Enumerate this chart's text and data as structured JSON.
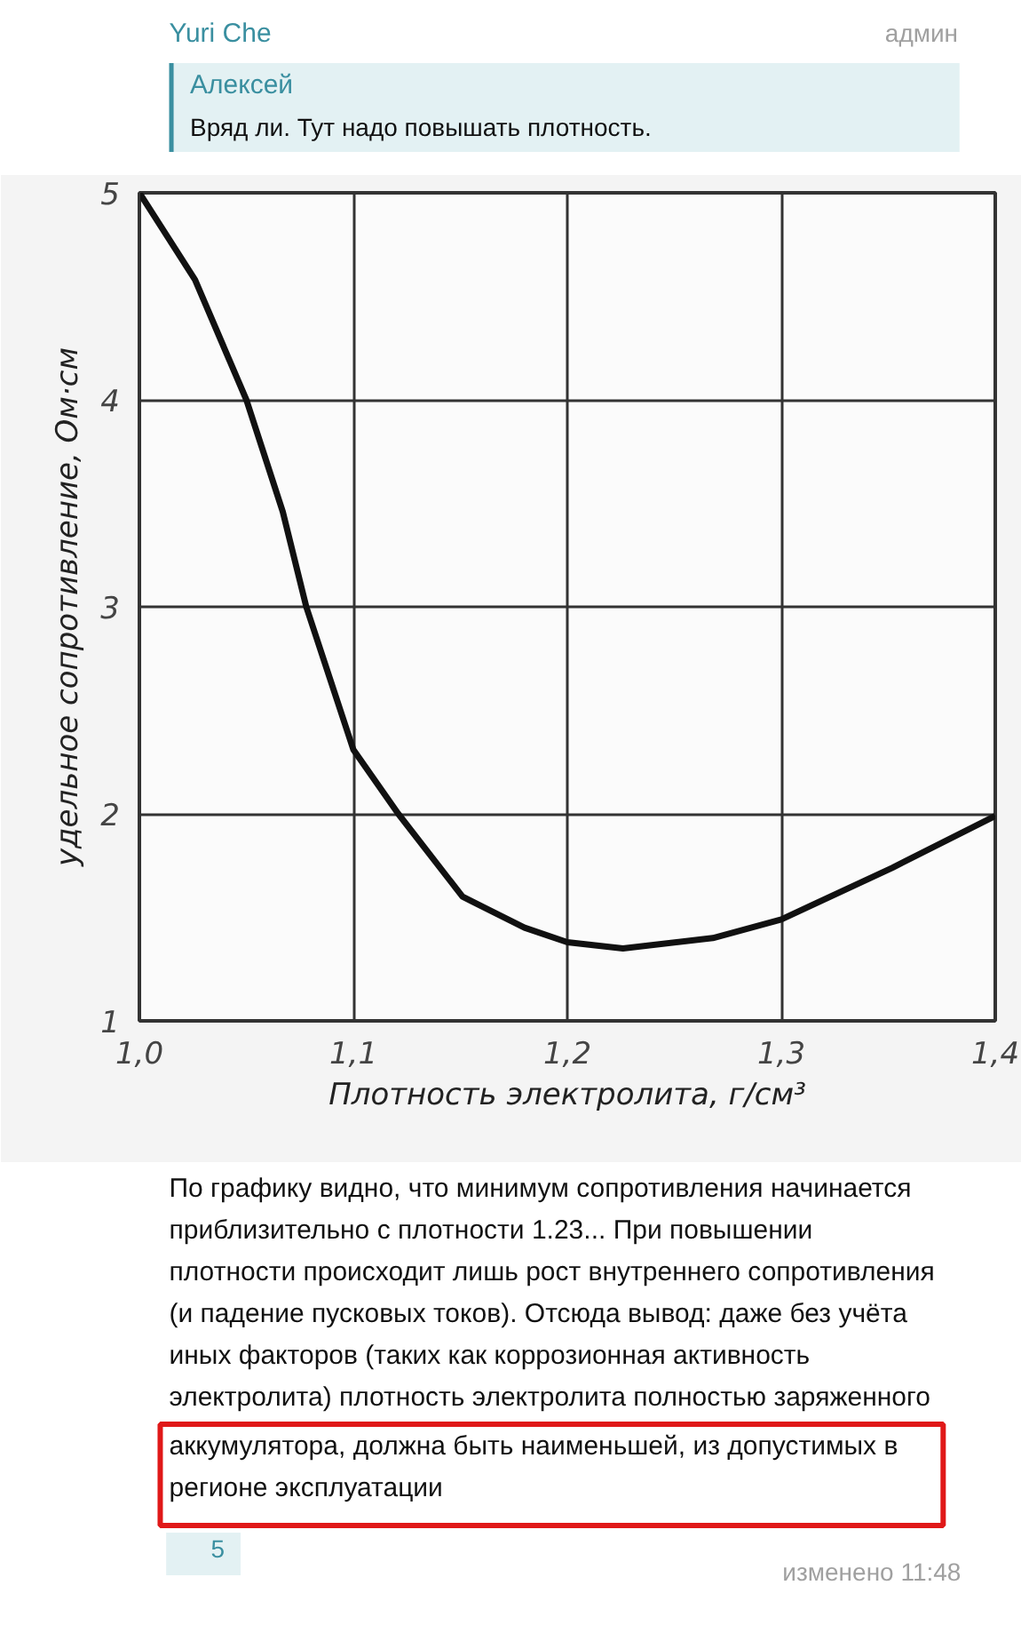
{
  "chart_data": {
    "type": "line",
    "xlabel": "Плотность электролита, г/см³",
    "ylabel": "удельное сопротивление, Ом·см",
    "x": [
      1.0,
      1.026,
      1.05,
      1.067,
      1.078,
      1.1,
      1.121,
      1.151,
      1.18,
      1.2,
      1.226,
      1.268,
      1.3,
      1.352,
      1.4
    ],
    "series": [
      {
        "color": "#111111",
        "values": [
          5.0,
          4.58,
          4.0,
          3.46,
          3.0,
          2.31,
          2.0,
          1.6,
          1.45,
          1.38,
          1.35,
          1.4,
          1.49,
          1.74,
          1.99
        ]
      }
    ],
    "xlim": [
      1.0,
      1.4
    ],
    "ylim": [
      1,
      5
    ],
    "xticks": [
      {
        "value": 1.0,
        "label": "1,0"
      },
      {
        "value": 1.1,
        "label": "1,1"
      },
      {
        "value": 1.2,
        "label": "1,2"
      },
      {
        "value": 1.3,
        "label": "1,3"
      },
      {
        "value": 1.4,
        "label": "1,4"
      }
    ],
    "yticks": [
      1,
      2,
      3,
      4,
      5
    ],
    "grid": true,
    "marker": "none",
    "line_style": "solid",
    "annotations": [
      "Yuri Che",
      "админ",
      "Алексей",
      "Вряд ли. Тут надо повышать плотность.",
      "По графику видно, что минимум сопротивления начинается приблизительно с плотности 1.23... При повышении плотности происходит лишь рост внутреннего сопротивления (и падение пусковых токов). Отсюда вывод: даже без учёта иных факторов (таких как коррозионная активность электролита) плотность электролита полностью заряженного",
      "аккумулятора, должна быть наименьшей, из допустимых в регионе эксплуатации",
      "5",
      "изменено 11:48"
    ]
  }
}
